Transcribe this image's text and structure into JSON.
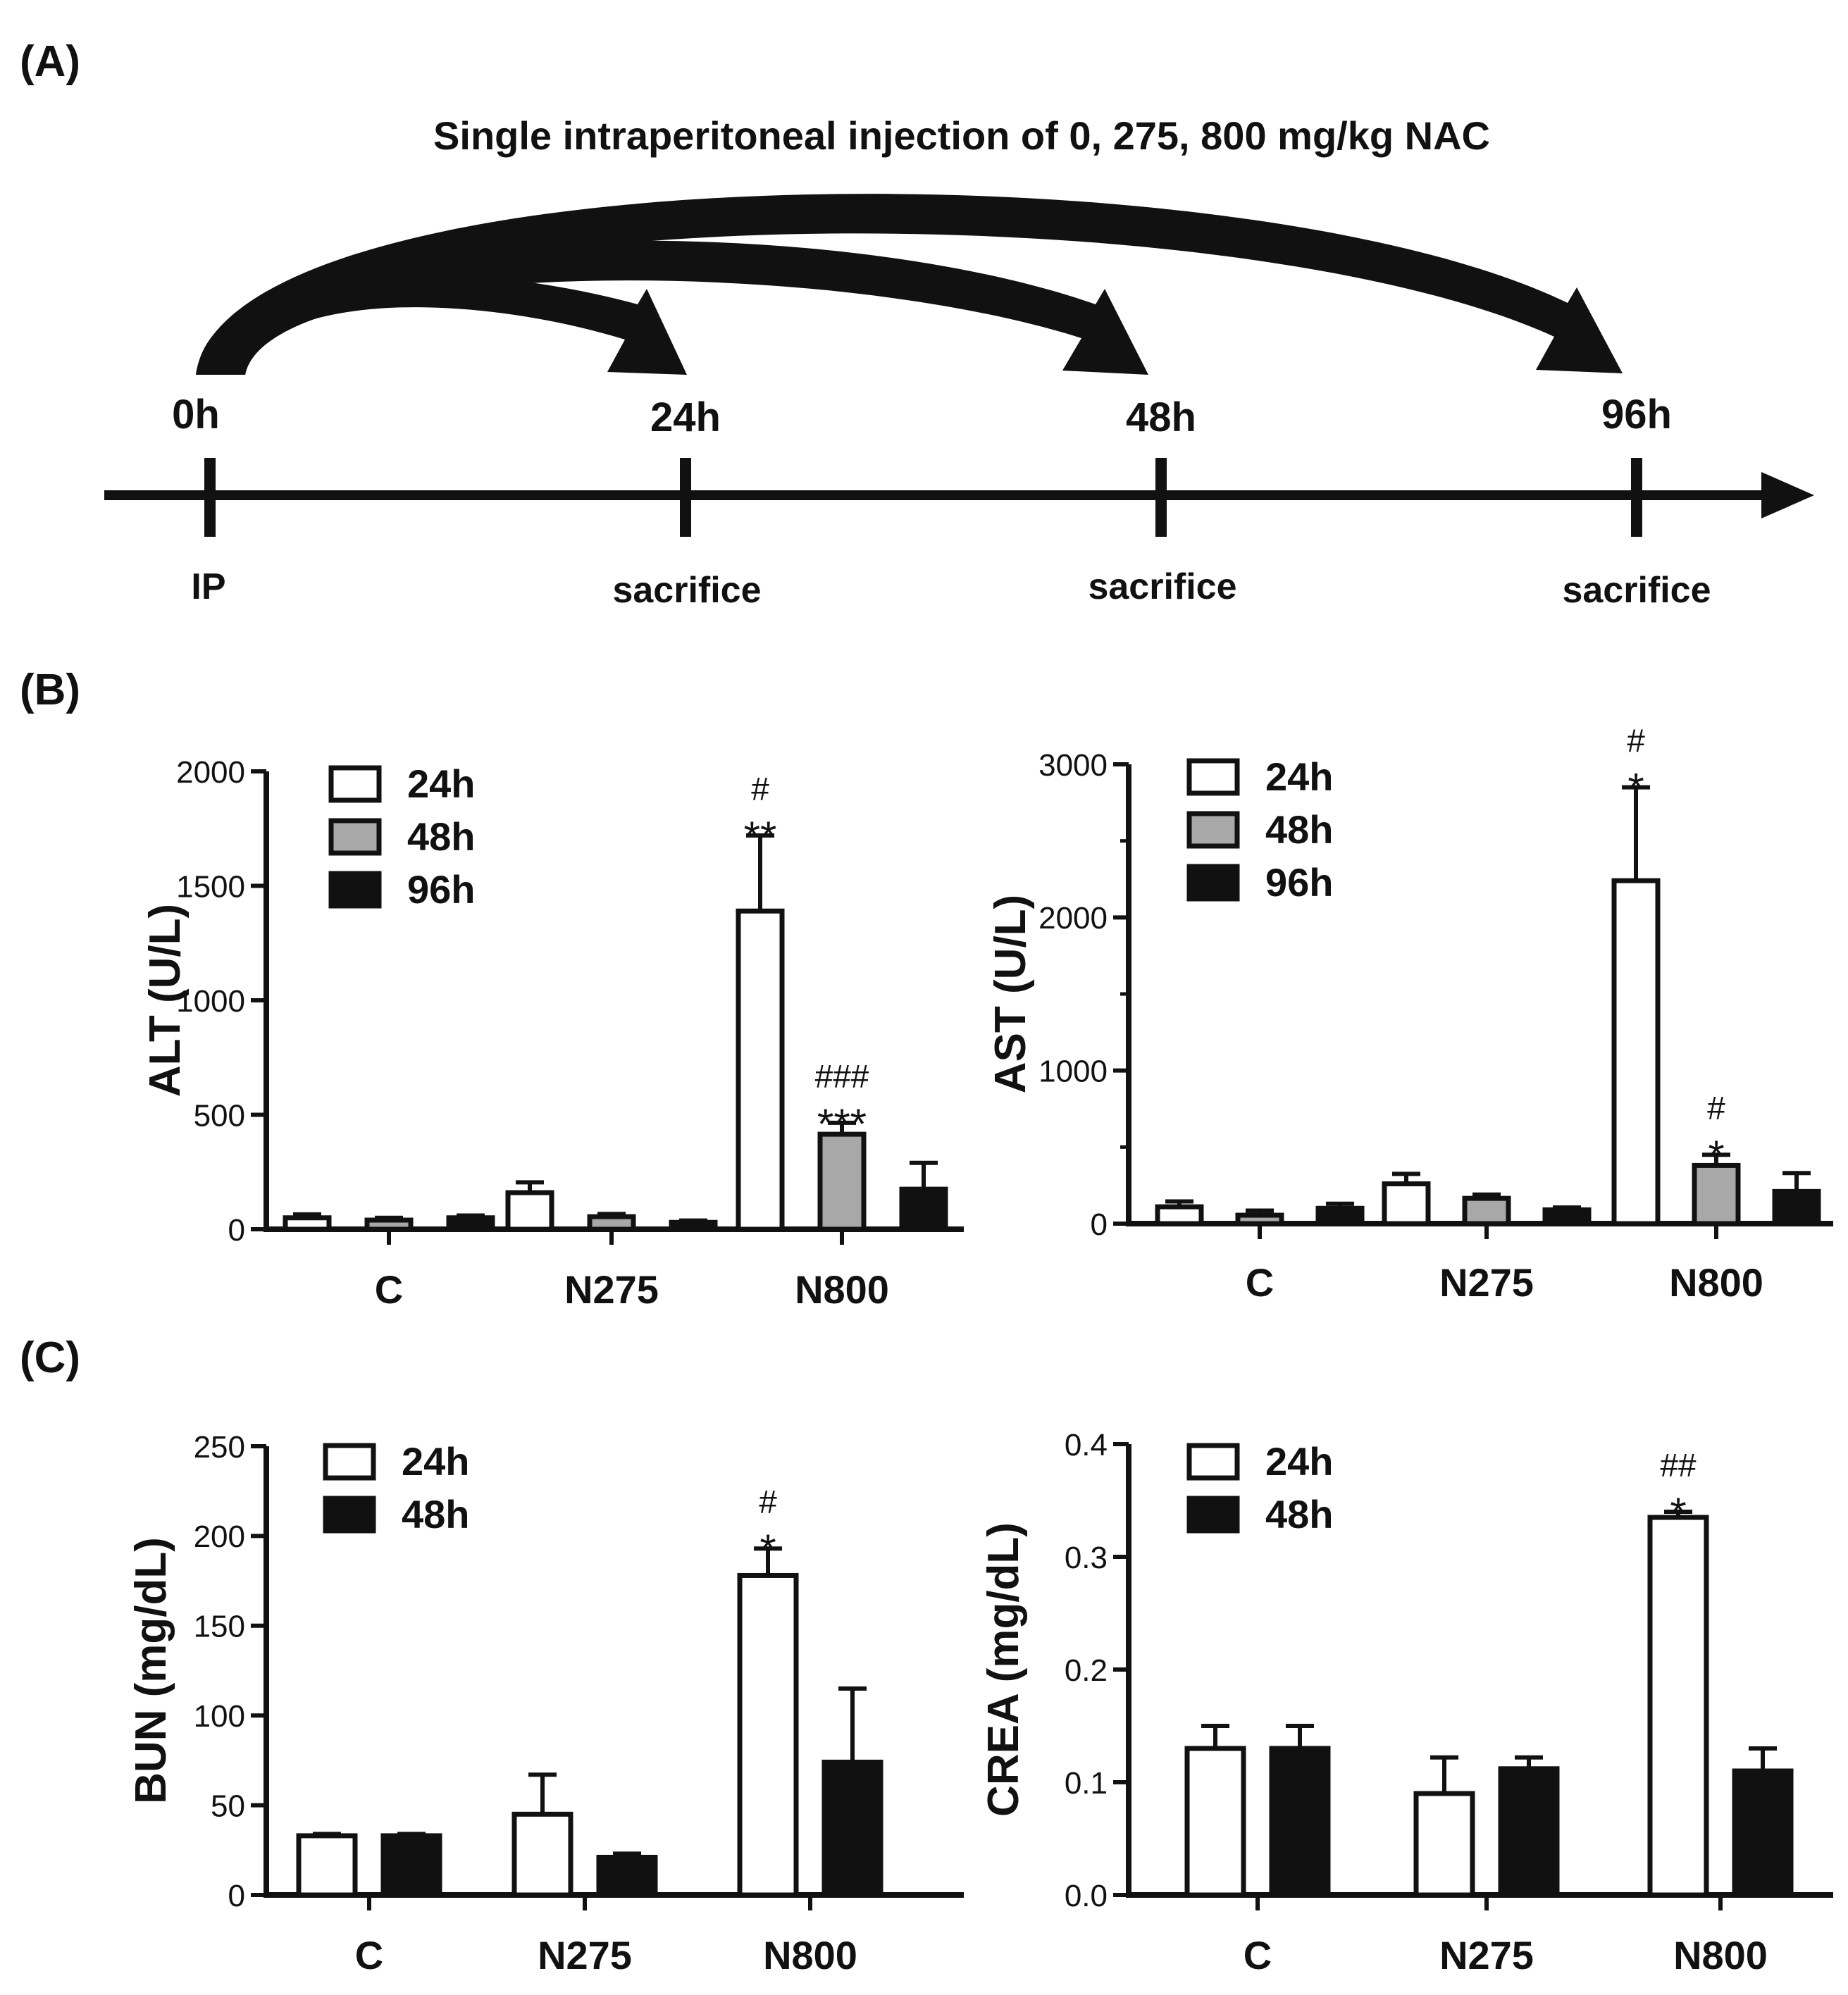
{
  "figure": {
    "panel_labels": [
      "(A)",
      "(B)",
      "(C)"
    ],
    "colors": {
      "ink": "#111111",
      "bar_24h": "#ffffff",
      "bar_48h_gray": "#a8a8a8",
      "bar_dark": "#111111"
    }
  },
  "timeline": {
    "title": "Single intraperitoneal injection of 0, 275, 800 mg/kg NAC",
    "timepoints": [
      {
        "label": "0h",
        "event": "IP"
      },
      {
        "label": "24h",
        "event": "sacrifice"
      },
      {
        "label": "48h",
        "event": "sacrifice"
      },
      {
        "label": "96h",
        "event": "sacrifice"
      }
    ]
  },
  "chart_data": [
    {
      "id": "alt",
      "type": "bar",
      "title": "",
      "xlabel": "",
      "ylabel": "ALT (U/L)",
      "ylim": [
        0,
        2000
      ],
      "yticks": [
        0,
        500,
        1000,
        1500,
        2000
      ],
      "ytick_labels": [
        "0",
        "500",
        "1000",
        "1500",
        "2000"
      ],
      "minor_ticks": false,
      "categories": [
        "C",
        "N275",
        "N800"
      ],
      "legend": {
        "entries": [
          "24h",
          "48h",
          "96h"
        ],
        "position": "top-left"
      },
      "series": [
        {
          "name": "24h",
          "fill": "#ffffff",
          "values": [
            50,
            160,
            1390
          ],
          "errors": [
            15,
            45,
            330
          ]
        },
        {
          "name": "48h",
          "fill": "#a8a8a8",
          "values": [
            40,
            55,
            415
          ],
          "errors": [
            10,
            12,
            50
          ]
        },
        {
          "name": "96h",
          "fill": "#111111",
          "values": [
            50,
            30,
            175
          ],
          "errors": [
            10,
            8,
            115
          ]
        }
      ],
      "annotations": [
        {
          "category": "N800",
          "series": "24h",
          "lines": [
            "#",
            "**"
          ]
        },
        {
          "category": "N800",
          "series": "48h",
          "lines": [
            "###",
            "***"
          ]
        }
      ]
    },
    {
      "id": "ast",
      "type": "bar",
      "title": "",
      "xlabel": "",
      "ylabel": "AST (U/L)",
      "ylim": [
        0,
        3000
      ],
      "yticks": [
        0,
        1000,
        2000,
        3000
      ],
      "ytick_labels": [
        "0",
        "1000",
        "2000",
        "3000"
      ],
      "minor_ticks": true,
      "categories": [
        "C",
        "N275",
        "N800"
      ],
      "legend": {
        "entries": [
          "24h",
          "48h",
          "96h"
        ],
        "position": "top-left"
      },
      "series": [
        {
          "name": "24h",
          "fill": "#ffffff",
          "values": [
            110,
            260,
            2240
          ],
          "errors": [
            35,
            65,
            610
          ]
        },
        {
          "name": "48h",
          "fill": "#a8a8a8",
          "values": [
            55,
            165,
            380
          ],
          "errors": [
            30,
            25,
            70
          ]
        },
        {
          "name": "96h",
          "fill": "#111111",
          "values": [
            100,
            90,
            210
          ],
          "errors": [
            30,
            15,
            120
          ]
        }
      ],
      "annotations": [
        {
          "category": "N800",
          "series": "24h",
          "lines": [
            "#",
            "*"
          ]
        },
        {
          "category": "N800",
          "series": "48h",
          "lines": [
            "#",
            "*"
          ]
        }
      ]
    },
    {
      "id": "bun",
      "type": "bar",
      "title": "",
      "xlabel": "",
      "ylabel": "BUN (mg/dL)",
      "ylim": [
        0,
        250
      ],
      "yticks": [
        0,
        50,
        100,
        150,
        200,
        250
      ],
      "ytick_labels": [
        "0",
        "50",
        "100",
        "150",
        "200",
        "250"
      ],
      "minor_ticks": false,
      "categories": [
        "C",
        "N275",
        "N800"
      ],
      "legend": {
        "entries": [
          "24h",
          "48h"
        ],
        "position": "top-left"
      },
      "series": [
        {
          "name": "24h",
          "fill": "#ffffff",
          "values": [
            33,
            45,
            178
          ],
          "errors": [
            1,
            22,
            15
          ]
        },
        {
          "name": "48h",
          "fill": "#111111",
          "values": [
            33,
            21,
            74
          ],
          "errors": [
            1,
            2,
            41
          ]
        }
      ],
      "annotations": [
        {
          "category": "N800",
          "series": "24h",
          "lines": [
            "#",
            "*"
          ]
        }
      ]
    },
    {
      "id": "crea",
      "type": "bar",
      "title": "",
      "xlabel": "",
      "ylabel": "CREA (mg/dL)",
      "ylim": [
        0,
        0.4
      ],
      "yticks": [
        0,
        0.1,
        0.2,
        0.3,
        0.4
      ],
      "ytick_labels": [
        "0.0",
        "0.1",
        "0.2",
        "0.3",
        "0.4"
      ],
      "minor_ticks": false,
      "categories": [
        "C",
        "N275",
        "N800"
      ],
      "legend": {
        "entries": [
          "24h",
          "48h"
        ],
        "position": "top-left"
      },
      "series": [
        {
          "name": "24h",
          "fill": "#ffffff",
          "values": [
            0.13,
            0.09,
            0.335
          ],
          "errors": [
            0.02,
            0.032,
            0.005
          ]
        },
        {
          "name": "48h",
          "fill": "#111111",
          "values": [
            0.13,
            0.112,
            0.11
          ],
          "errors": [
            0.02,
            0.01,
            0.02
          ]
        }
      ],
      "annotations": [
        {
          "category": "N800",
          "series": "24h",
          "lines": [
            "##",
            "*"
          ]
        }
      ]
    }
  ]
}
